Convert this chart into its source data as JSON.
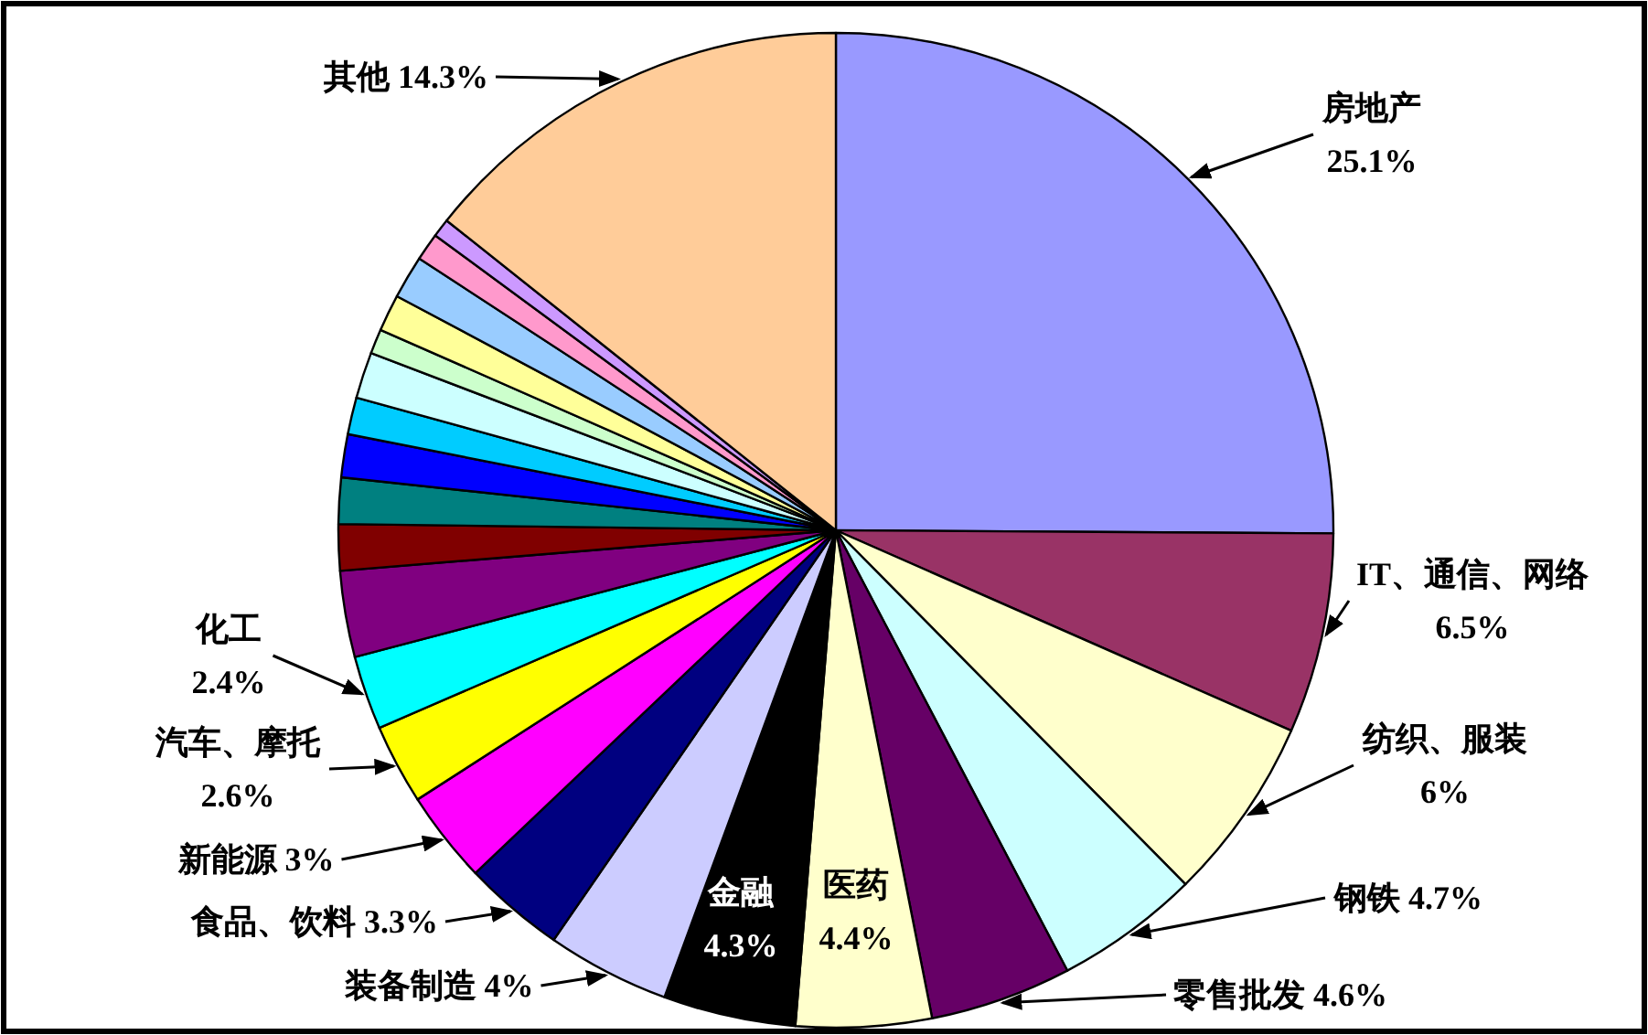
{
  "chart_data": {
    "type": "pie",
    "categories": [
      "房地产",
      "IT、通信、网络",
      "纺织、服装",
      "钢铁",
      "零售批发",
      "医药",
      "金融",
      "装备制造",
      "食品、饮料",
      "新能源",
      "汽车、摩托",
      "化工",
      null,
      null,
      null,
      null,
      null,
      null,
      null,
      null,
      null,
      null,
      null,
      "其他"
    ],
    "values": [
      25.1,
      6.5,
      6,
      4.7,
      4.6,
      4.4,
      4.3,
      4,
      3.3,
      3,
      2.6,
      2.4,
      2.8,
      1.5,
      1.5,
      1.4,
      1.2,
      1.5,
      0.8,
      1.2,
      1.4,
      0.9,
      0.6,
      14.3
    ],
    "value_labels": [
      "25.1%",
      "6.5%",
      "6%",
      "4.7%",
      "4.6%",
      "4.4%",
      "4.3%",
      "4%",
      "3.3%",
      "3%",
      "2.6%",
      "2.4%",
      null,
      null,
      null,
      null,
      null,
      null,
      null,
      null,
      null,
      null,
      null,
      "14.3%"
    ],
    "colors": [
      "#9999ff",
      "#993366",
      "#ffffcc",
      "#ccffff",
      "#660066",
      "#ffffcc",
      "#000000",
      "#ccccff",
      "#000080",
      "#ff00ff",
      "#ffff00",
      "#00ffff",
      "#800080",
      "#800000",
      "#008080",
      "#0000ff",
      "#00ccff",
      "#ccffff",
      "#ccffcc",
      "#ffff99",
      "#99ccff",
      "#ff99cc",
      "#cc99ff",
      "#ffcc99"
    ]
  }
}
